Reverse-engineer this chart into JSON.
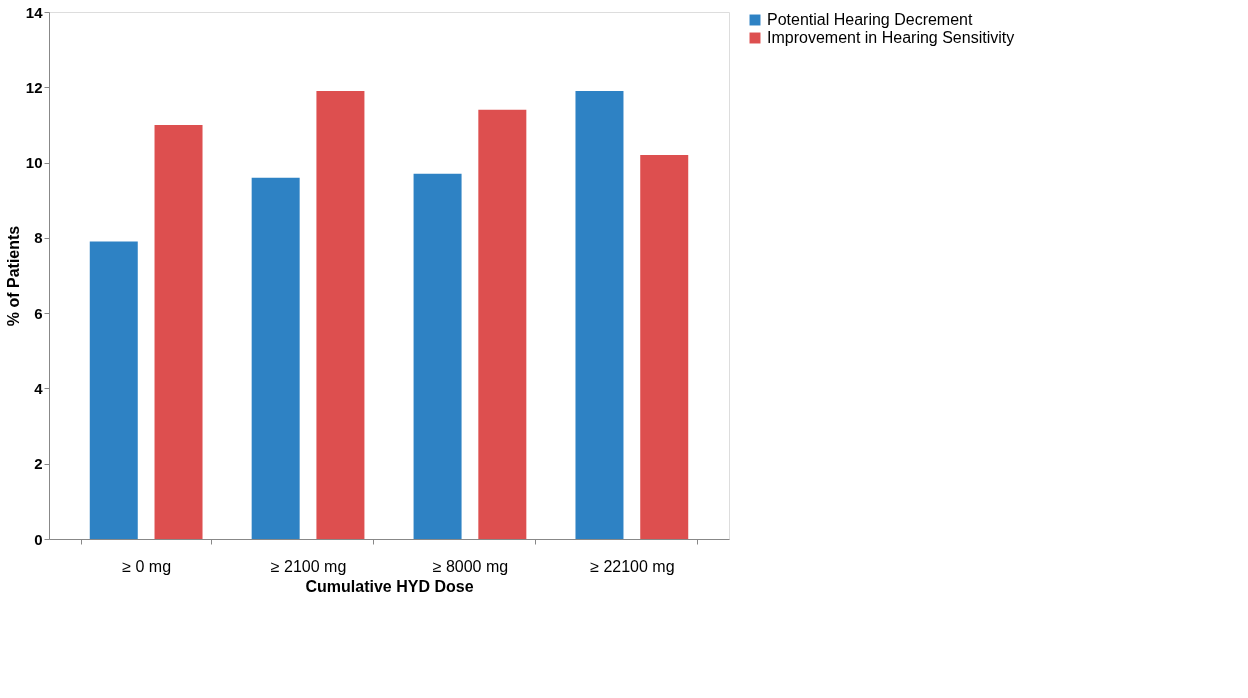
{
  "chart_data": {
    "type": "bar",
    "xlabel": "Cumulative HYD Dose",
    "ylabel": "% of Patients",
    "categories": [
      "≥ 0 mg",
      "≥ 2100 mg",
      "≥ 8000 mg",
      "≥ 22100 mg"
    ],
    "series": [
      {
        "name": "Potential Hearing Decrement",
        "color": "#2e82c4",
        "values": [
          7.9,
          9.6,
          9.7,
          11.9
        ]
      },
      {
        "name": "Improvement in Hearing Sensitivity",
        "color": "#dd4f4f",
        "values": [
          11.0,
          11.9,
          11.4,
          10.2
        ]
      }
    ],
    "ylim": [
      0,
      14
    ],
    "yticks": [
      0,
      2,
      4,
      6,
      8,
      10,
      12,
      14
    ],
    "grid": false,
    "legend": "right"
  }
}
